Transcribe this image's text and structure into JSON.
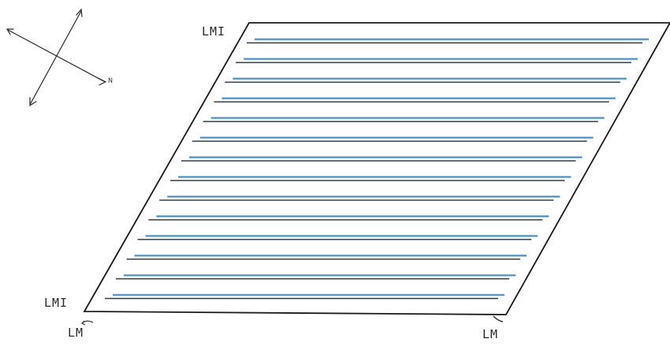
{
  "compass": {
    "north_label": "N"
  },
  "labels": {
    "top_left": "LMI",
    "bottom_left": "LMI",
    "bottom_left_below": "LM",
    "bottom_right": "LM"
  },
  "colors": {
    "frame": "#1a1a1a",
    "stripe_blue": "#5b9ac6",
    "stripe_dark": "#2e3a42"
  },
  "stripe_pair_count": 14
}
